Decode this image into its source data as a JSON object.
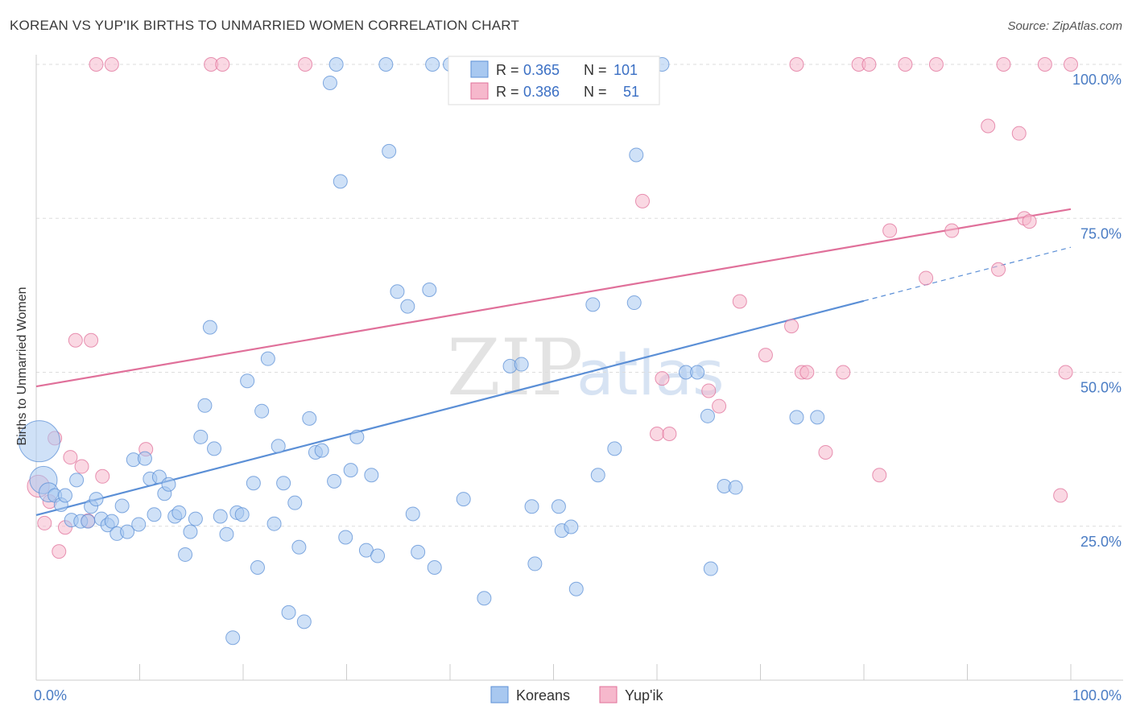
{
  "header": {
    "title": "KOREAN VS YUP'IK BIRTHS TO UNMARRIED WOMEN CORRELATION CHART",
    "source": "Source: ZipAtlas.com"
  },
  "watermark": {
    "zip": "ZIP",
    "atlas": "atlas"
  },
  "legend_top": {
    "rows": [
      {
        "r_label": "R =",
        "r_value": "0.365",
        "n_label": "N =",
        "n_value": "101",
        "color": "#a8c8f0"
      },
      {
        "r_label": "R =",
        "r_value": "0.386",
        "n_label": "N =",
        "n_value": "51",
        "color": "#f6b8cc"
      }
    ]
  },
  "legend_bottom": {
    "items": [
      {
        "label": "Koreans",
        "color": "#a8c8f0"
      },
      {
        "label": "Yup'ik",
        "color": "#f6b8cc"
      }
    ]
  },
  "chart_data": {
    "type": "scatter",
    "title": "KOREAN VS YUP'IK BIRTHS TO UNMARRIED WOMEN CORRELATION CHART",
    "ylabel": "Births to Unmarried Women",
    "xlabel": "",
    "xlim": [
      0,
      100
    ],
    "ylim": [
      0,
      100
    ],
    "x_tick_labels": [
      {
        "value": 0,
        "label": "0.0%"
      },
      {
        "value": 100,
        "label": "100.0%"
      }
    ],
    "y_tick_labels": [
      {
        "value": 25,
        "label": "25.0%"
      },
      {
        "value": 50,
        "label": "50.0%"
      },
      {
        "value": 75,
        "label": "75.0%"
      },
      {
        "value": 100,
        "label": "100.0%"
      }
    ],
    "grid": true,
    "legend_position": "top-center",
    "series": [
      {
        "name": "Koreans",
        "color": "#5b8fd6",
        "fill": "#a8c8f0",
        "trend": {
          "x0": 0,
          "y0": 26.8,
          "x1": 80,
          "y1": 61.6,
          "dash_x1": 100,
          "dash_y1": 70.3
        },
        "points": [
          [
            0.3,
            38.8,
            3
          ],
          [
            0.7,
            32.5,
            2
          ],
          [
            1.2,
            30.5,
            1.4
          ],
          [
            1.8,
            30.0,
            1
          ],
          [
            2.4,
            28.5,
            1
          ],
          [
            2.8,
            30.0,
            1
          ],
          [
            3.4,
            26.0,
            1
          ],
          [
            3.9,
            32.5,
            1
          ],
          [
            4.3,
            25.8,
            1
          ],
          [
            5.0,
            25.8,
            1
          ],
          [
            5.3,
            28.2,
            1
          ],
          [
            5.8,
            29.4,
            1
          ],
          [
            6.3,
            26.2,
            1
          ],
          [
            6.9,
            25.2,
            1
          ],
          [
            7.3,
            25.8,
            1
          ],
          [
            7.8,
            23.8,
            1
          ],
          [
            8.3,
            28.3,
            1
          ],
          [
            8.8,
            24.1,
            1
          ],
          [
            9.4,
            35.8,
            1
          ],
          [
            9.9,
            25.3,
            1
          ],
          [
            10.5,
            36.0,
            1
          ],
          [
            11.0,
            32.7,
            1
          ],
          [
            11.4,
            26.9,
            1
          ],
          [
            11.9,
            33.0,
            1
          ],
          [
            12.4,
            30.3,
            1
          ],
          [
            12.8,
            31.8,
            1
          ],
          [
            13.4,
            26.6,
            1
          ],
          [
            13.8,
            27.2,
            1
          ],
          [
            14.4,
            20.4,
            1
          ],
          [
            14.9,
            24.1,
            1
          ],
          [
            15.4,
            26.2,
            1
          ],
          [
            15.9,
            39.5,
            1
          ],
          [
            16.3,
            44.6,
            1
          ],
          [
            16.8,
            57.3,
            1
          ],
          [
            17.2,
            37.6,
            1
          ],
          [
            17.8,
            26.6,
            1
          ],
          [
            18.4,
            23.7,
            1
          ],
          [
            19.0,
            6.9,
            1
          ],
          [
            19.4,
            27.2,
            1
          ],
          [
            19.9,
            26.9,
            1
          ],
          [
            20.4,
            48.6,
            1
          ],
          [
            21.0,
            32.0,
            1
          ],
          [
            21.4,
            18.3,
            1
          ],
          [
            21.8,
            43.7,
            1
          ],
          [
            22.4,
            52.2,
            1
          ],
          [
            23.0,
            25.4,
            1
          ],
          [
            23.4,
            38.0,
            1
          ],
          [
            23.9,
            32.0,
            1
          ],
          [
            24.4,
            11.0,
            1
          ],
          [
            25.0,
            28.8,
            1
          ],
          [
            25.4,
            21.6,
            1
          ],
          [
            25.9,
            9.5,
            1
          ],
          [
            26.4,
            42.5,
            1
          ],
          [
            27.0,
            37.0,
            1
          ],
          [
            27.6,
            37.3,
            1
          ],
          [
            28.4,
            97.0,
            1
          ],
          [
            28.8,
            32.3,
            1
          ],
          [
            29.4,
            81.0,
            1
          ],
          [
            29.9,
            23.2,
            1
          ],
          [
            30.4,
            34.1,
            1
          ],
          [
            31.0,
            39.5,
            1
          ],
          [
            31.9,
            21.1,
            1
          ],
          [
            32.4,
            33.3,
            1
          ],
          [
            33.0,
            20.2,
            1
          ],
          [
            33.8,
            100.0,
            1
          ],
          [
            34.1,
            85.9,
            1
          ],
          [
            34.9,
            63.1,
            1
          ],
          [
            35.9,
            60.7,
            1
          ],
          [
            36.4,
            27.0,
            1
          ],
          [
            36.9,
            20.8,
            1
          ],
          [
            38.0,
            63.4,
            1
          ],
          [
            38.5,
            18.3,
            1
          ],
          [
            40.0,
            100.0,
            1
          ],
          [
            41.3,
            29.4,
            1
          ],
          [
            43.3,
            13.3,
            1
          ],
          [
            45.8,
            51.0,
            1
          ],
          [
            46.9,
            51.3,
            1
          ],
          [
            47.9,
            28.2,
            1
          ],
          [
            48.2,
            18.9,
            1
          ],
          [
            50.5,
            28.2,
            1
          ],
          [
            50.8,
            24.3,
            1
          ],
          [
            51.7,
            24.9,
            1
          ],
          [
            52.2,
            14.8,
            1
          ],
          [
            53.8,
            61.0,
            1
          ],
          [
            54.3,
            33.3,
            1
          ],
          [
            55.9,
            37.6,
            1
          ],
          [
            57.8,
            61.3,
            1
          ],
          [
            58.0,
            85.3,
            1
          ],
          [
            59.0,
            100.0,
            1
          ],
          [
            60.5,
            100.0,
            1
          ],
          [
            62.8,
            50.0,
            1
          ],
          [
            63.9,
            50.0,
            1
          ],
          [
            64.9,
            42.9,
            1
          ],
          [
            65.2,
            18.1,
            1
          ],
          [
            66.5,
            31.5,
            1
          ],
          [
            67.6,
            31.3,
            1
          ],
          [
            73.5,
            42.7,
            1
          ],
          [
            75.5,
            42.7,
            1
          ],
          [
            48.5,
            100.0,
            1
          ],
          [
            38.3,
            100.0,
            1
          ],
          [
            29.0,
            100.0,
            1
          ]
        ]
      },
      {
        "name": "Yup'ik",
        "color": "#e0709a",
        "fill": "#f6b8cc",
        "trend": {
          "x0": 0,
          "y0": 47.7,
          "x1": 100,
          "y1": 76.5
        },
        "points": [
          [
            0.2,
            31.5,
            1.6
          ],
          [
            0.8,
            25.5,
            1
          ],
          [
            1.3,
            29.0,
            1
          ],
          [
            1.8,
            39.3,
            1
          ],
          [
            2.2,
            20.9,
            1
          ],
          [
            2.8,
            24.8,
            1
          ],
          [
            3.3,
            36.2,
            1
          ],
          [
            3.8,
            55.2,
            1
          ],
          [
            4.4,
            34.7,
            1
          ],
          [
            5.0,
            25.9,
            1
          ],
          [
            5.3,
            55.2,
            1
          ],
          [
            5.8,
            100.0,
            1
          ],
          [
            6.4,
            33.1,
            1
          ],
          [
            7.3,
            100.0,
            1
          ],
          [
            10.6,
            37.5,
            1
          ],
          [
            16.9,
            100.0,
            1
          ],
          [
            18.0,
            100.0,
            1
          ],
          [
            26.0,
            100.0,
            1
          ],
          [
            56.6,
            100.0,
            1
          ],
          [
            58.6,
            77.8,
            1
          ],
          [
            60.0,
            40.0,
            1
          ],
          [
            60.5,
            49.0,
            1
          ],
          [
            61.2,
            40.0,
            1
          ],
          [
            65.0,
            47.0,
            1
          ],
          [
            66.0,
            44.5,
            1
          ],
          [
            68.0,
            61.5,
            1
          ],
          [
            70.5,
            52.8,
            1
          ],
          [
            73.0,
            57.5,
            1
          ],
          [
            73.5,
            100.0,
            1
          ],
          [
            74.0,
            50.0,
            1
          ],
          [
            74.5,
            50.0,
            1
          ],
          [
            76.3,
            37.0,
            1
          ],
          [
            78.0,
            50.0,
            1
          ],
          [
            79.5,
            100.0,
            1
          ],
          [
            80.5,
            100.0,
            1
          ],
          [
            81.5,
            33.3,
            1
          ],
          [
            82.5,
            73.0,
            1
          ],
          [
            84.0,
            100.0,
            1
          ],
          [
            86.0,
            65.3,
            1
          ],
          [
            87.0,
            100.0,
            1
          ],
          [
            88.5,
            73.0,
            1
          ],
          [
            92.0,
            90.0,
            1
          ],
          [
            93.0,
            66.7,
            1
          ],
          [
            93.5,
            100.0,
            1
          ],
          [
            95.0,
            88.8,
            1
          ],
          [
            95.5,
            75.0,
            1
          ],
          [
            96.0,
            74.5,
            1
          ],
          [
            97.5,
            100.0,
            1
          ],
          [
            99.0,
            30.0,
            1
          ],
          [
            99.5,
            50.0,
            1
          ],
          [
            100.0,
            100.0,
            1
          ]
        ]
      }
    ]
  }
}
